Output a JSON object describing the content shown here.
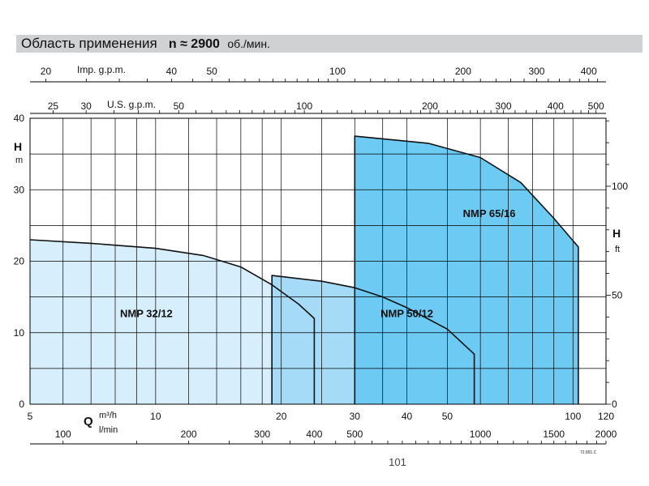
{
  "header": {
    "title": "Область применения",
    "speed_label": "n ≈ 2900",
    "speed_unit": "об./мин."
  },
  "footer": {
    "ref_code": "72.891.C",
    "page_fragment": "101"
  },
  "colors": {
    "nmp_32_12": "#d7eefc",
    "nmp_50_12": "#a6dbf7",
    "nmp_65_16": "#6ccaf3",
    "banner": "#cfd1d3",
    "grid": "#000000"
  },
  "chart_data": {
    "type": "area",
    "xscale": "log",
    "xlabel": "Q",
    "xunit_primary": "m³/h",
    "xunit_secondary": "l/min",
    "xlim": [
      5,
      120
    ],
    "ylim": [
      0,
      40
    ],
    "ylabel": "H",
    "yunit": "m",
    "yticks": [
      0,
      10,
      20,
      30,
      40
    ],
    "xticks_m3h": [
      5,
      10,
      20,
      30,
      40,
      50,
      100,
      120
    ],
    "x_grid_m3h": [
      6,
      7,
      8,
      9,
      10,
      12,
      14,
      16,
      18,
      20,
      25,
      30,
      35,
      40,
      50,
      60,
      70,
      80,
      90,
      100
    ],
    "y_grid_m": [
      5,
      10,
      15,
      20,
      25,
      30,
      35,
      40
    ],
    "ft_axis": {
      "label": "H",
      "unit": "ft",
      "ticks": [
        0,
        50,
        100
      ],
      "minor_step": 10,
      "max": 131.2
    },
    "lmin_axis": {
      "unit": "l/min",
      "ticks": [
        100,
        200,
        300,
        400,
        500,
        1000,
        1500,
        2000
      ],
      "factor": 16.6667
    },
    "usgpm_axis": {
      "label": "U.S. g.p.m.",
      "ticks": [
        25,
        30,
        50,
        100,
        200,
        300,
        400,
        500
      ],
      "factor": 4.403
    },
    "impgpm_axis": {
      "label": "Imp. g.p.m.",
      "ticks": [
        20,
        40,
        50,
        100,
        200,
        300,
        400
      ],
      "factor": 3.666
    },
    "series": [
      {
        "name": "NMP 32/12",
        "label": "NMP 32/12",
        "label_at": [
          9.5,
          12.2
        ],
        "points": [
          [
            5,
            23
          ],
          [
            7,
            22.5
          ],
          [
            10,
            21.8
          ],
          [
            13,
            20.8
          ],
          [
            16,
            19.2
          ],
          [
            19,
            16.7
          ],
          [
            22,
            14
          ],
          [
            24,
            12
          ]
        ],
        "qmin": 5,
        "qmax": 24
      },
      {
        "name": "NMP 50/12",
        "label": "NMP 50/12",
        "label_at": [
          40,
          12.2
        ],
        "points": [
          [
            19,
            18
          ],
          [
            25,
            17.2
          ],
          [
            30,
            16.3
          ],
          [
            35,
            15
          ],
          [
            40,
            13.5
          ],
          [
            50,
            10.5
          ],
          [
            58,
            7
          ]
        ],
        "qmin": 19,
        "qmax": 58
      },
      {
        "name": "NMP 65/16",
        "label": "NMP 65/16",
        "label_at": [
          63,
          26.2
        ],
        "points": [
          [
            30,
            37.5
          ],
          [
            45,
            36.5
          ],
          [
            60,
            34.5
          ],
          [
            75,
            31
          ],
          [
            90,
            26
          ],
          [
            103,
            22
          ]
        ],
        "qmin": 30,
        "qmax": 103
      }
    ]
  }
}
